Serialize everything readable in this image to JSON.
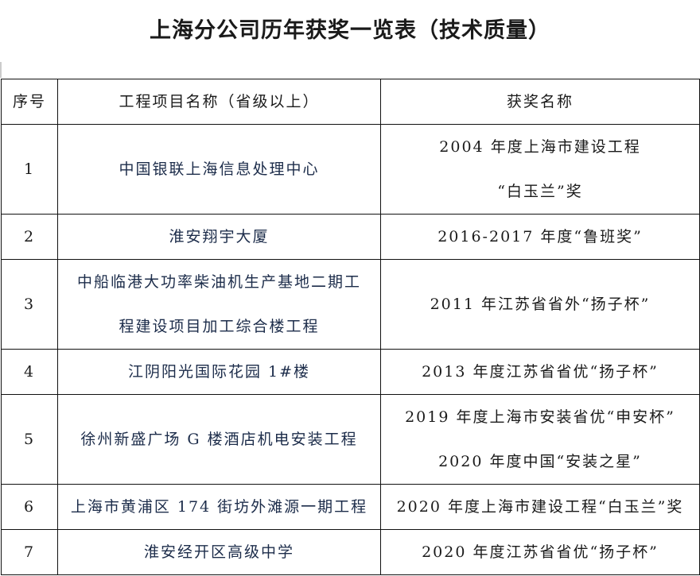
{
  "title": "上海分公司历年获奖一览表（技术质量）",
  "headers": {
    "index": "序号",
    "project": "工程项目名称（省级以上）",
    "award": "获奖名称"
  },
  "rows": [
    {
      "index": "1",
      "project": [
        "中国银联上海信息处理中心"
      ],
      "award": [
        "2004 年度上海市建设工程",
        "“白玉兰”奖"
      ]
    },
    {
      "index": "2",
      "project": [
        "淮安翔宇大厦"
      ],
      "award": [
        "2016-2017 年度“鲁班奖”"
      ]
    },
    {
      "index": "3",
      "project": [
        "中船临港大功率柴油机生产基地二期工",
        "程建设项目加工综合楼工程"
      ],
      "award": [
        "2011 年江苏省省外“扬子杯”"
      ]
    },
    {
      "index": "4",
      "project": [
        "江阴阳光国际花园 1#楼"
      ],
      "award": [
        "2013 年度江苏省省优“扬子杯”"
      ]
    },
    {
      "index": "5",
      "project": [
        "徐州新盛广场 G 楼酒店机电安装工程"
      ],
      "award": [
        "2019 年度上海市安装省优“申安杯”",
        "2020 年度中国“安装之星”"
      ]
    },
    {
      "index": "6",
      "project": [
        "上海市黄浦区 174 街坊外滩源一期工程"
      ],
      "award": [
        "2020 年度上海市建设工程“白玉兰”奖"
      ]
    },
    {
      "index": "7",
      "project": [
        "淮安经开区高级中学"
      ],
      "award": [
        "2020 年度江苏省省优“扬子杯”"
      ]
    }
  ]
}
